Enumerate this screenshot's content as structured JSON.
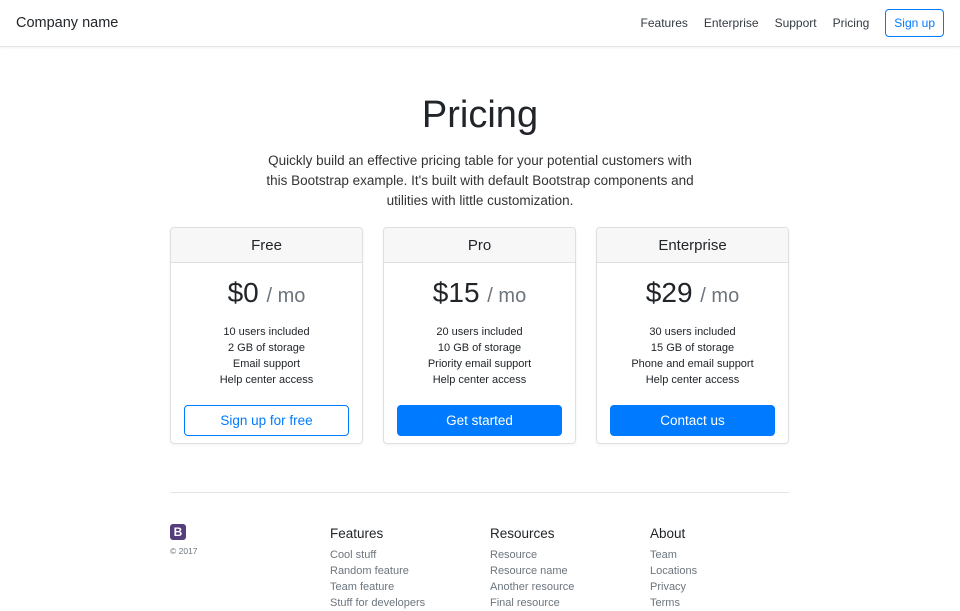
{
  "nav": {
    "brand": "Company name",
    "links": [
      "Features",
      "Enterprise",
      "Support",
      "Pricing"
    ],
    "signup": "Sign up"
  },
  "hero": {
    "title": "Pricing",
    "lead": "Quickly build an effective pricing table for your potential customers with this Bootstrap example. It's built with default Bootstrap components and utilities with little customization."
  },
  "plans": [
    {
      "name": "Free",
      "price": "$0",
      "period": "/ mo",
      "features": [
        "10 users included",
        "2 GB of storage",
        "Email support",
        "Help center access"
      ],
      "button": "Sign up for free"
    },
    {
      "name": "Pro",
      "price": "$15",
      "period": "/ mo",
      "features": [
        "20 users included",
        "10 GB of storage",
        "Priority email support",
        "Help center access"
      ],
      "button": "Get started"
    },
    {
      "name": "Enterprise",
      "price": "$29",
      "period": "/ mo",
      "features": [
        "30 users included",
        "15 GB of storage",
        "Phone and email support",
        "Help center access"
      ],
      "button": "Contact us"
    }
  ],
  "footer": {
    "logo": "B",
    "copyright": "© 2017",
    "columns": [
      {
        "title": "Features",
        "items": [
          "Cool stuff",
          "Random feature",
          "Team feature",
          "Stuff for developers"
        ]
      },
      {
        "title": "Resources",
        "items": [
          "Resource",
          "Resource name",
          "Another resource",
          "Final resource"
        ]
      },
      {
        "title": "About",
        "items": [
          "Team",
          "Locations",
          "Privacy",
          "Terms"
        ]
      }
    ]
  },
  "colors": {
    "primary": "#007bff",
    "logo": "#563d7c"
  }
}
